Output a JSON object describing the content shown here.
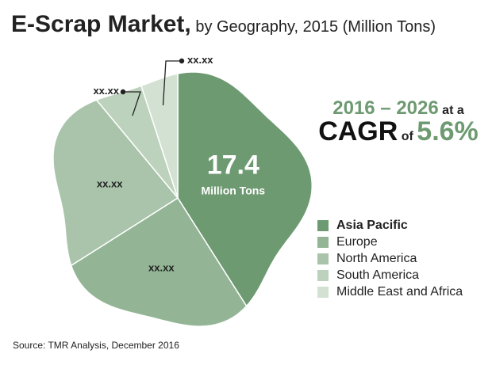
{
  "title": {
    "main": "E-Scrap Market,",
    "sub": " by Geography, 2015 (Million Tons)"
  },
  "cagr": {
    "years": "2016 – 2026",
    "at_a": " at a",
    "cagr_word": "CAGR",
    "of": " of ",
    "rate": "5.6%"
  },
  "chart_data": {
    "type": "pie",
    "title": "E-Scrap Market, by Geography, 2015 (Million Tons)",
    "unit": "Million Tons",
    "slices": [
      {
        "name": "Asia Pacific",
        "value_label": "17.4",
        "unit_label": "Million Tons",
        "share": 0.41,
        "color": "#6e9a72"
      },
      {
        "name": "Europe",
        "value_label": "xx.xx",
        "share": 0.25,
        "color": "#93b595"
      },
      {
        "name": "North America",
        "value_label": "xx.xx",
        "share": 0.23,
        "color": "#a9c4aa"
      },
      {
        "name": "South America",
        "value_label": "xx.xx",
        "share": 0.06,
        "color": "#bdd2bd"
      },
      {
        "name": "Middle East and Africa",
        "value_label": "xx.xx",
        "share": 0.05,
        "color": "#d3e1d3"
      }
    ],
    "legend_position": "right"
  },
  "source": "Source: TMR Analysis, December 2016"
}
